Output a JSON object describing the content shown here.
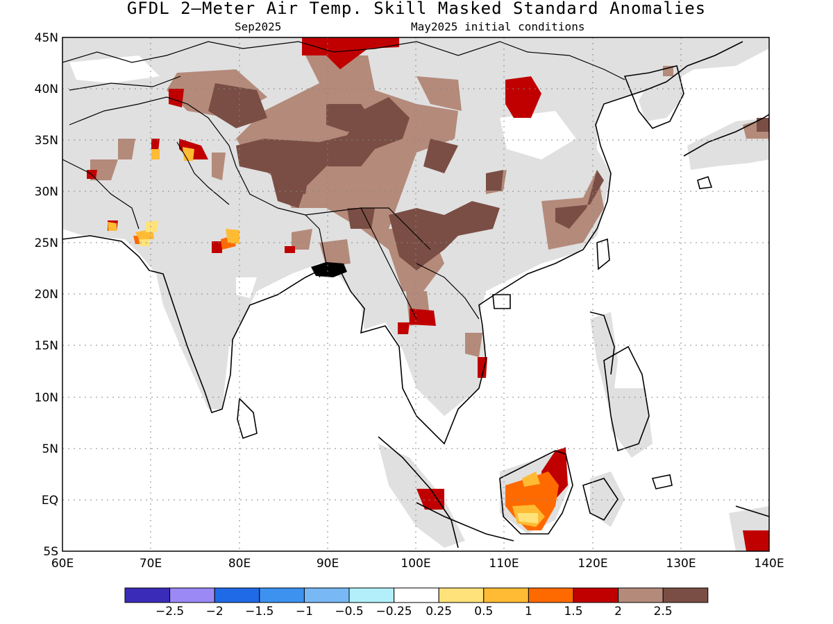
{
  "title": "GFDL 2—Meter Air Temp. Skill Masked Standard Anomalies",
  "subtitle_left": "Sep2025",
  "subtitle_right": "May2025 initial conditions",
  "lon_labels": [
    "60E",
    "70E",
    "80E",
    "90E",
    "100E",
    "110E",
    "120E",
    "130E",
    "140E"
  ],
  "lat_labels": [
    "45N",
    "40N",
    "35N",
    "30N",
    "25N",
    "20N",
    "15N",
    "10N",
    "5N",
    "EQ",
    "5S"
  ],
  "colorbar": {
    "colors": [
      "#3a2cb8",
      "#9b8af5",
      "#1f6ae6",
      "#3d92f0",
      "#78b9f5",
      "#b2effa",
      "#ffffff",
      "#ffe27a",
      "#ffbb33",
      "#ff6a00",
      "#c00000",
      "#b48a7a",
      "#7a4e44"
    ],
    "tick_labels": [
      "−2.5",
      "−2",
      "−1.5",
      "−1",
      "−0.5",
      "−0.25",
      "0.25",
      "0.5",
      "1",
      "1.5",
      "2",
      "2.5"
    ]
  },
  "map_colors": {
    "land_mask": "#e0e0e0",
    "anomaly_brown_dark": "#7a4e44",
    "anomaly_brown_light": "#b48a7a",
    "anomaly_red": "#c00000",
    "anomaly_orange": "#ff6a00",
    "anomaly_amber": "#ffbb33",
    "anomaly_yellow": "#ffe27a",
    "coastline": "#000000"
  }
}
